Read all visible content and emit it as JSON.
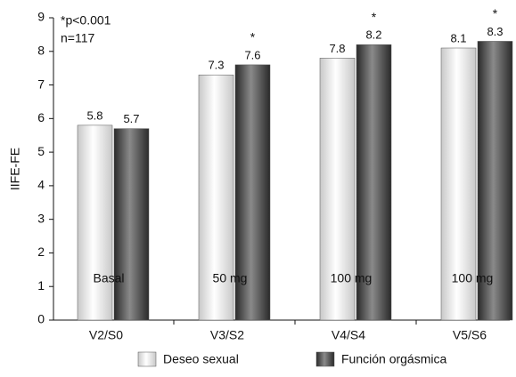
{
  "chart_data": {
    "type": "bar",
    "y_label": "IIFE-FE",
    "annotations": [
      "*p<0.001",
      "n=117"
    ],
    "categories": [
      "V2/S0",
      "V3/S2",
      "V4/S4",
      "V5/S6"
    ],
    "dose_labels": [
      "Basal",
      "50 mg",
      "100 mg",
      "100 mg"
    ],
    "significance": [
      null,
      "*",
      "*",
      "*"
    ],
    "series": [
      {
        "name": "Deseo sexual",
        "color": "#c8c8c8",
        "values": [
          5.8,
          7.3,
          7.8,
          8.1
        ]
      },
      {
        "name": "Función orgásmica",
        "color": "#2a2a2a",
        "values": [
          5.7,
          7.6,
          8.2,
          8.3
        ]
      }
    ],
    "ylim": [
      0,
      9
    ],
    "yticks": [
      0,
      1,
      2,
      3,
      4,
      5,
      6,
      7,
      8,
      9
    ]
  }
}
